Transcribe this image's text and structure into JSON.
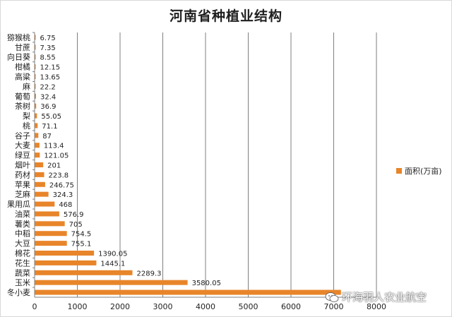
{
  "chart_data": {
    "type": "bar",
    "orientation": "horizontal",
    "title": "河南省种植业结构",
    "categories": [
      "猕猴桃",
      "甘蔗",
      "向日葵",
      "柑橘",
      "高粱",
      "麻",
      "葡萄",
      "茶树",
      "梨",
      "桃",
      "谷子",
      "大麦",
      "绿豆",
      "烟叶",
      "药材",
      "苹果",
      "芝麻",
      "果用瓜",
      "油菜",
      "薯类",
      "中稻",
      "大豆",
      "棉花",
      "花生",
      "蔬菜",
      "玉米",
      "冬小麦"
    ],
    "series": [
      {
        "name": "面积(万亩)",
        "values": [
          6.75,
          7.35,
          8.55,
          12.15,
          13.65,
          22.2,
          32.4,
          36.9,
          55.05,
          71.1,
          87,
          113.4,
          121.05,
          201,
          223.8,
          246.75,
          324.3,
          468,
          576.9,
          705,
          754.5,
          755.1,
          1390.05,
          1445.1,
          2289.3,
          3580.05,
          7170
        ],
        "labels": [
          "6.75",
          "7.35",
          "8.55",
          "12.15",
          "13.65",
          "22.2",
          "32.4",
          "36.9",
          "55.05",
          "71.1",
          "87",
          "113.4",
          "121.05",
          "201",
          "223.8",
          "246.75",
          "324.3",
          "468",
          "576.9",
          "705",
          "754.5",
          "755.1",
          "1390.05",
          "1445.1",
          "2289.3",
          "3580.05",
          ""
        ],
        "color": "#e8852a"
      }
    ],
    "xlim": [
      0,
      8000
    ],
    "xticks": [
      0,
      1000,
      2000,
      3000,
      4000,
      5000,
      6000,
      7000,
      8000
    ],
    "grid": "vertical",
    "legend": "right"
  },
  "watermark": {
    "text": "环海羽人农业航空",
    "icon": "wechat-icon"
  }
}
